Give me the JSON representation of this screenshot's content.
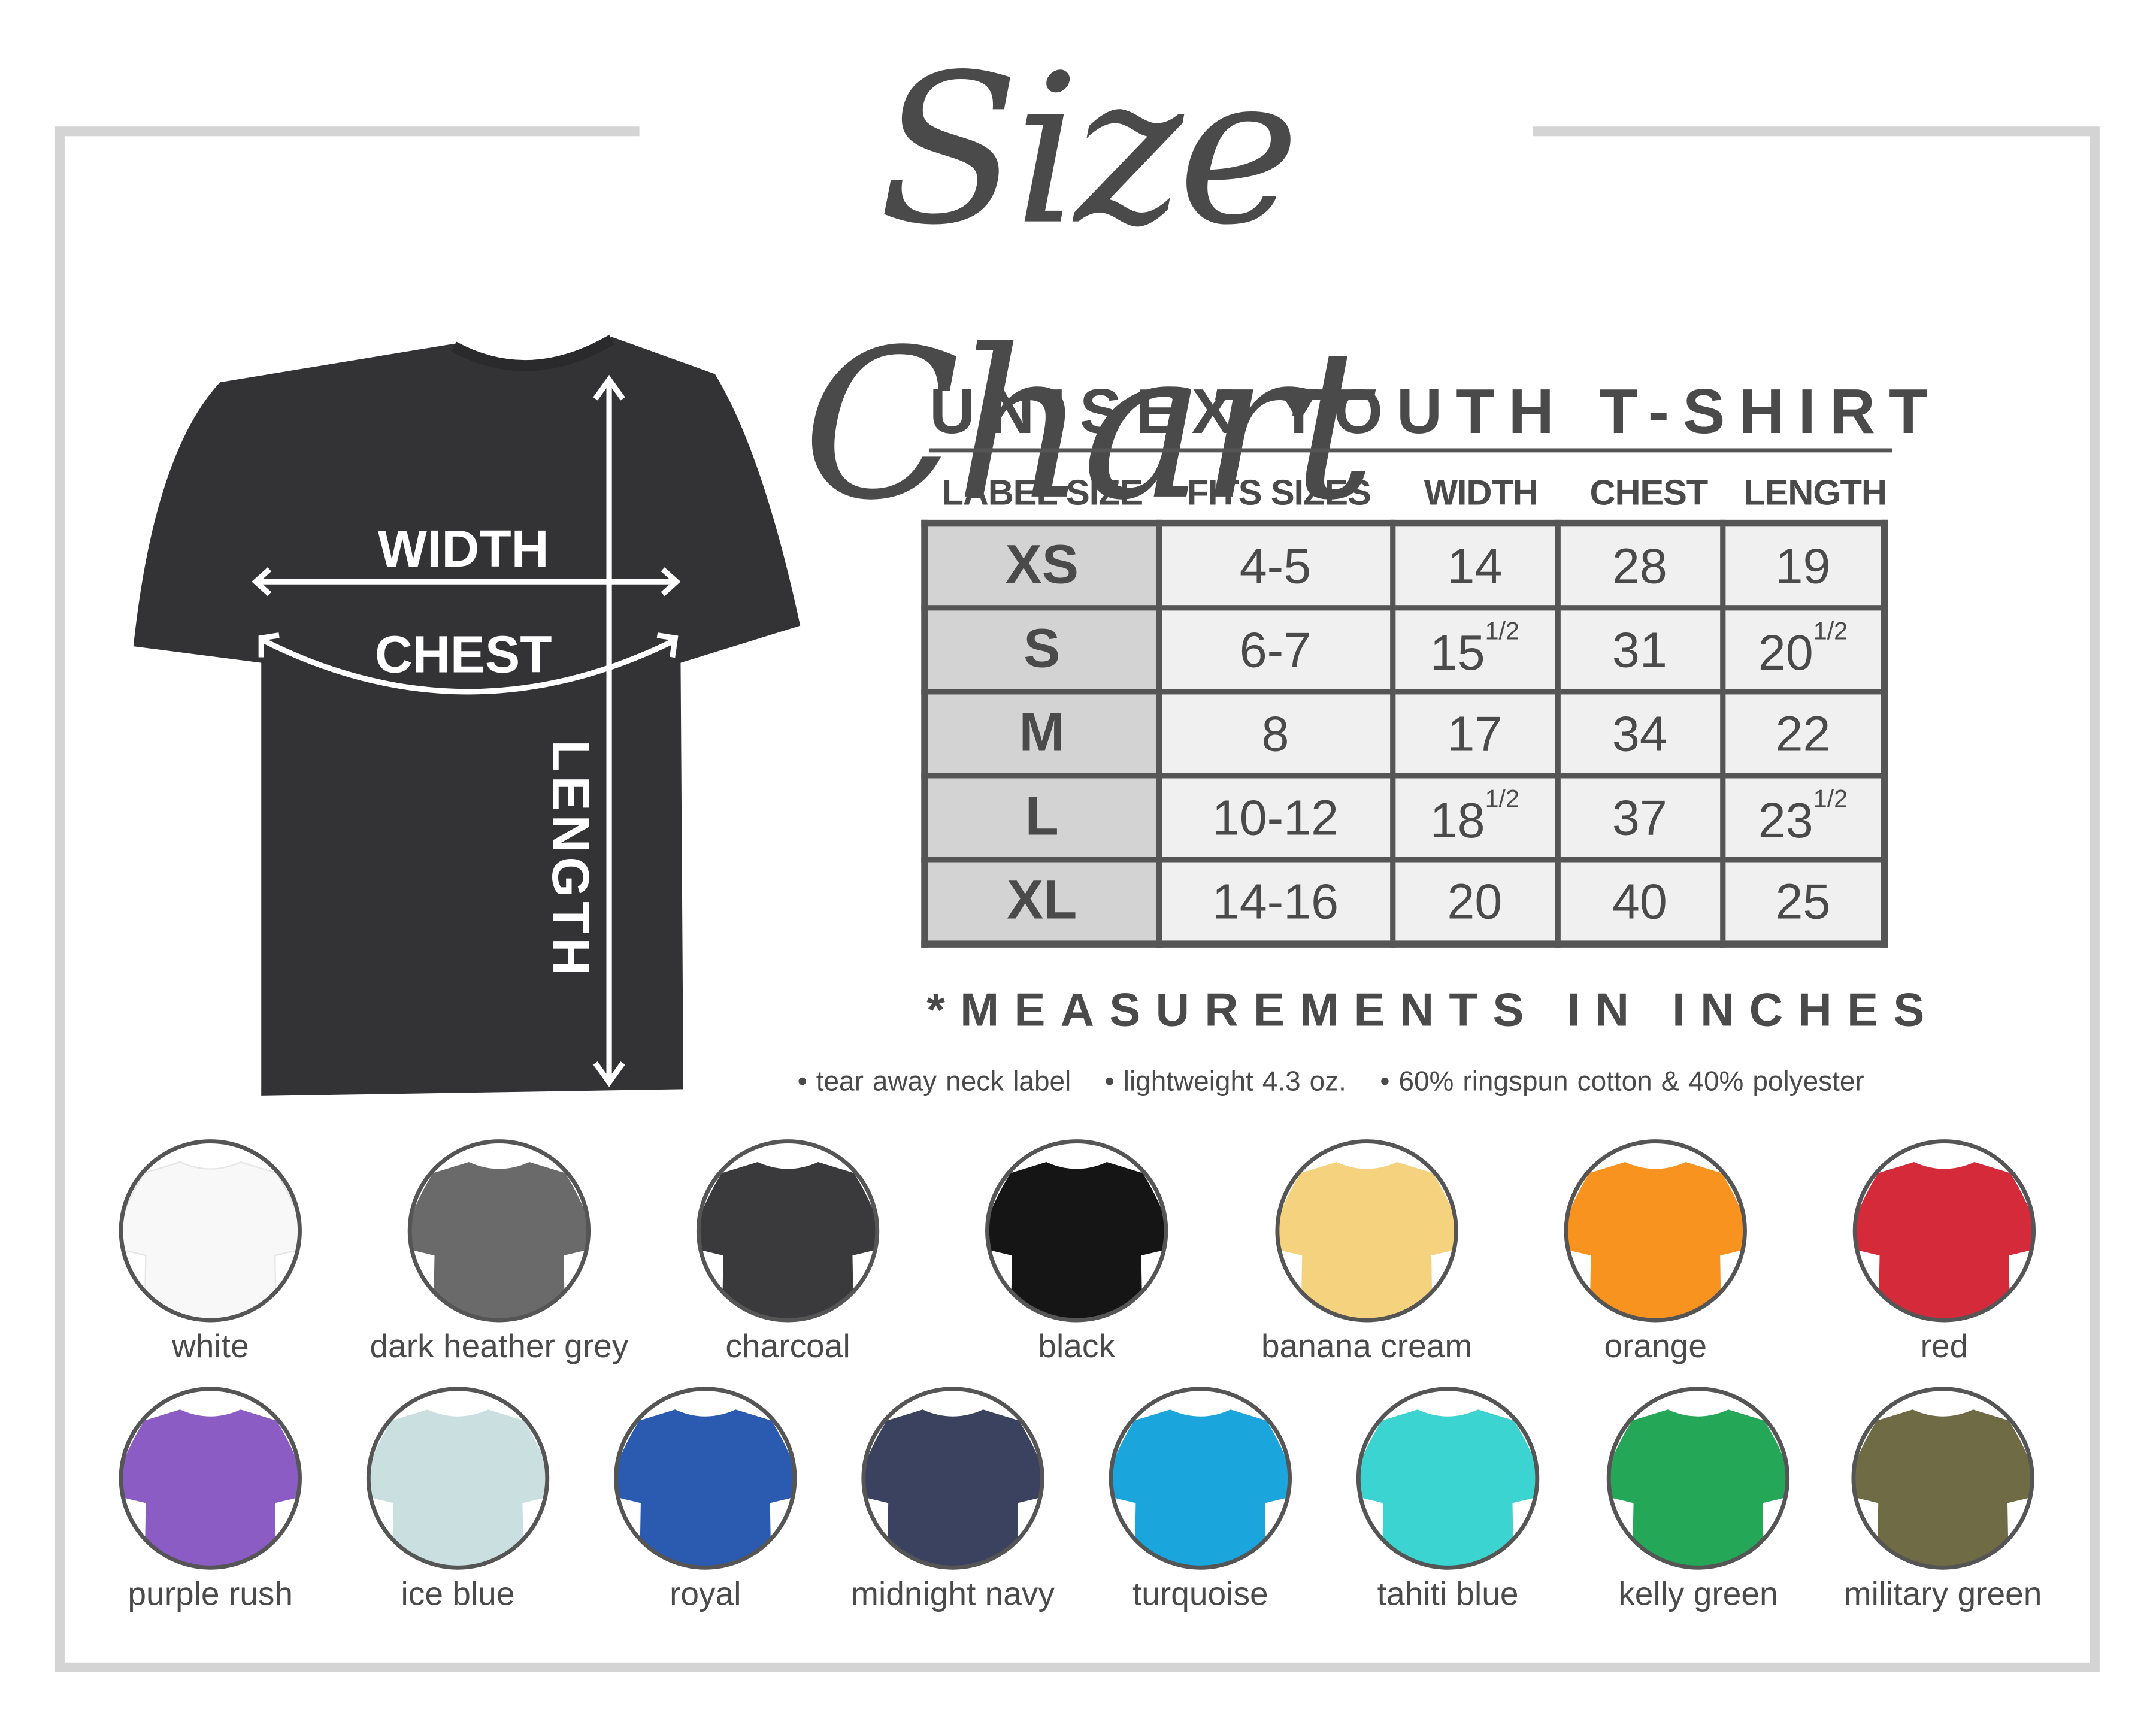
{
  "title": "Size Chart",
  "shirt_diagram": {
    "width_label": "WIDTH",
    "chest_label": "CHEST",
    "length_label": "LENGTH",
    "shirt_color": "#333335"
  },
  "table": {
    "heading": "UNISEX YOUTH T-SHIRT",
    "columns": [
      "LABEL SIZE",
      "FITS SIZES",
      "WIDTH",
      "CHEST",
      "LENGTH"
    ],
    "rows": [
      {
        "label": "XS",
        "fits": "4-5",
        "width": "14",
        "width_frac": "",
        "chest": "28",
        "length": "19",
        "length_frac": ""
      },
      {
        "label": "S",
        "fits": "6-7",
        "width": "15",
        "width_frac": "1/2",
        "chest": "31",
        "length": "20",
        "length_frac": "1/2"
      },
      {
        "label": "M",
        "fits": "8",
        "width": "17",
        "width_frac": "",
        "chest": "34",
        "length": "22",
        "length_frac": ""
      },
      {
        "label": "L",
        "fits": "10-12",
        "width": "18",
        "width_frac": "1/2",
        "chest": "37",
        "length": "23",
        "length_frac": "1/2"
      },
      {
        "label": "XL",
        "fits": "14-16",
        "width": "20",
        "width_frac": "",
        "chest": "40",
        "length": "25",
        "length_frac": ""
      }
    ],
    "note": "*MEASUREMENTS IN INCHES"
  },
  "features": [
    "• tear away neck label",
    "• lightweight 4.3 oz.",
    "• 60% ringspun cotton & 40% polyester"
  ],
  "colors": [
    {
      "name": "white",
      "hex": "#f8f8f8"
    },
    {
      "name": "dark heather grey",
      "hex": "#6a6a6a"
    },
    {
      "name": "charcoal",
      "hex": "#3a3a3c"
    },
    {
      "name": "black",
      "hex": "#151515"
    },
    {
      "name": "banana cream",
      "hex": "#f5d37e"
    },
    {
      "name": "orange",
      "hex": "#f7931e"
    },
    {
      "name": "red",
      "hex": "#d42a3a"
    },
    {
      "name": "purple rush",
      "hex": "#8a5cc4"
    },
    {
      "name": "ice blue",
      "hex": "#c9dfe0"
    },
    {
      "name": "royal",
      "hex": "#2a5bb0"
    },
    {
      "name": "midnight navy",
      "hex": "#3a4260"
    },
    {
      "name": "turquoise",
      "hex": "#1aa6dc"
    },
    {
      "name": "tahiti blue",
      "hex": "#3cd4d0"
    },
    {
      "name": "kelly green",
      "hex": "#24a858"
    },
    {
      "name": "military green",
      "hex": "#6e6b45"
    }
  ]
}
